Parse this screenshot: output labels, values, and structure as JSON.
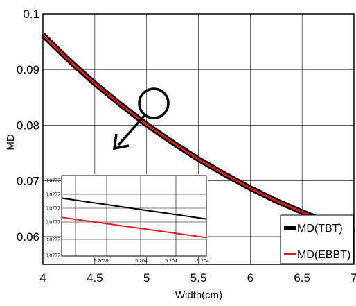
{
  "chart_data": {
    "type": "line",
    "title": "",
    "xlabel": "Width(cm)",
    "ylabel": "MD",
    "xlim": [
      4,
      7
    ],
    "ylim": [
      0.055,
      0.1
    ],
    "x_ticks": [
      4,
      4.5,
      5,
      5.5,
      6,
      6.5,
      7
    ],
    "x_tick_labels": [
      "4",
      "4.5",
      "5",
      "5.5",
      "6",
      "6.5",
      "7"
    ],
    "y_ticks": [
      0.06,
      0.07,
      0.08,
      0.09,
      0.1
    ],
    "y_tick_labels": [
      "0.06",
      "0.07",
      "0.08",
      "0.09",
      "0.1"
    ],
    "grid": true,
    "legend_position": "bottom-right",
    "series": [
      {
        "name": "MD(TBT)",
        "color": "#000000",
        "x": [
          4,
          4.25,
          4.5,
          4.75,
          5,
          5.25,
          5.5,
          5.75,
          6,
          6.25,
          6.5,
          6.75,
          7
        ],
        "y": [
          0.0962,
          0.0917,
          0.0875,
          0.0837,
          0.0801,
          0.0769,
          0.0739,
          0.0712,
          0.0687,
          0.0664,
          0.0644,
          0.0625,
          0.0608
        ]
      },
      {
        "name": "MD(EBBT)",
        "color": "#e31a1c",
        "x": [
          4,
          4.25,
          4.5,
          4.75,
          5,
          5.25,
          5.5,
          5.75,
          6,
          6.25,
          6.5,
          6.75,
          7
        ],
        "y": [
          0.0962,
          0.0917,
          0.0875,
          0.0837,
          0.0801,
          0.0769,
          0.0739,
          0.0712,
          0.0687,
          0.0664,
          0.0644,
          0.0625,
          0.0608
        ]
      }
    ],
    "inset": {
      "x_tick_labels": [
        "5.2039",
        "5.204",
        "5.204",
        "5.204"
      ],
      "y_tick_labels": [
        "0.0777",
        "0.0777",
        "0.0777",
        "0.0777",
        "0.0777",
        "0.0777"
      ],
      "series": [
        {
          "color": "#000000",
          "y_start": 0.72,
          "y_end": 0.46
        },
        {
          "color": "#e31a1c",
          "y_start": 0.48,
          "y_end": 0.23
        }
      ]
    }
  }
}
